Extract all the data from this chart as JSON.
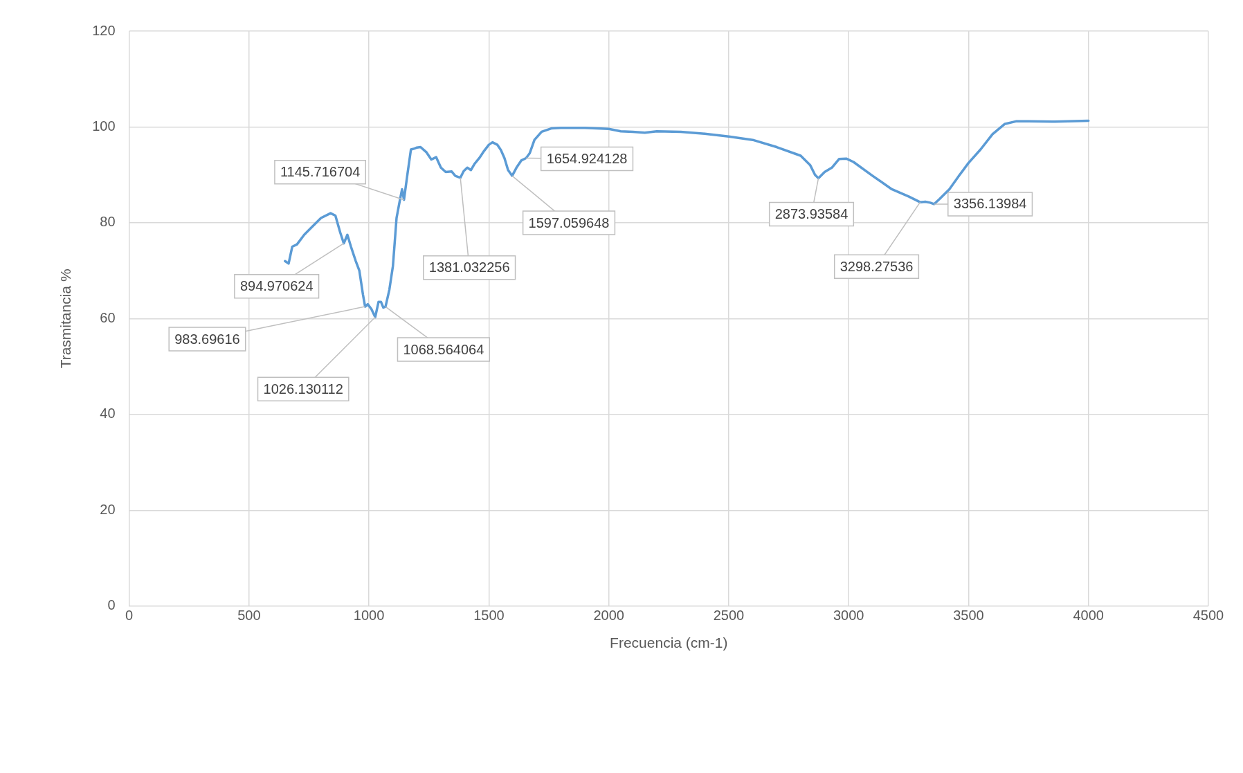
{
  "chart_data": {
    "type": "line",
    "xlabel": "Frecuencia (cm-1)",
    "ylabel": "Trasmitancia %",
    "xlim": [
      0,
      4500
    ],
    "xticks": [
      0,
      500,
      1000,
      1500,
      2000,
      2500,
      3000,
      3500,
      4000,
      4500
    ],
    "ylim": [
      0,
      120
    ],
    "yticks": [
      0,
      20,
      40,
      60,
      80,
      100,
      120
    ],
    "grid": true,
    "legend": false,
    "marker": "none",
    "line_style": "solid",
    "series": [
      {
        "color": "#5b9bd5",
        "x": [
          650,
          665,
          680,
          700,
          730,
          760,
          800,
          840,
          860,
          880,
          895,
          910,
          925,
          945,
          960,
          975,
          984,
          995,
          1010,
          1026,
          1040,
          1050,
          1060,
          1069,
          1085,
          1100,
          1115,
          1130,
          1138,
          1146,
          1160,
          1175,
          1190,
          1200,
          1215,
          1240,
          1260,
          1280,
          1300,
          1320,
          1345,
          1360,
          1381,
          1395,
          1410,
          1425,
          1440,
          1460,
          1480,
          1500,
          1515,
          1535,
          1550,
          1565,
          1580,
          1597,
          1615,
          1635,
          1655,
          1670,
          1690,
          1720,
          1760,
          1800,
          1900,
          2000,
          2050,
          2100,
          2150,
          2200,
          2300,
          2400,
          2500,
          2600,
          2700,
          2800,
          2840,
          2860,
          2874,
          2900,
          2930,
          2960,
          2990,
          3020,
          3100,
          3180,
          3250,
          3298,
          3320,
          3340,
          3356,
          3380,
          3420,
          3460,
          3500,
          3550,
          3600,
          3650,
          3700,
          3750,
          3850,
          4000
        ],
        "values": [
          72,
          71.5,
          75,
          75.5,
          77.5,
          79,
          81,
          82,
          81.5,
          78,
          75.7,
          77.5,
          75,
          72,
          70,
          65,
          62.5,
          63,
          62,
          60.3,
          63.5,
          63.5,
          62.3,
          62.5,
          66,
          71,
          81,
          85,
          87,
          84.8,
          90,
          95.3,
          95.5,
          95.7,
          95.8,
          94.7,
          93.2,
          93.7,
          91.5,
          90.6,
          90.7,
          89.8,
          89.4,
          90.8,
          91.5,
          91,
          92.3,
          93.5,
          95,
          96.3,
          96.8,
          96.3,
          95.2,
          93.5,
          91,
          89.8,
          91.5,
          93,
          93.5,
          94.5,
          97.3,
          99,
          99.7,
          99.8,
          99.8,
          99.6,
          99.1,
          99,
          98.8,
          99.1,
          99,
          98.6,
          98,
          97.3,
          95.8,
          94,
          92,
          90,
          89.3,
          90.6,
          91.5,
          93.3,
          93.4,
          92.7,
          89.8,
          87,
          85.5,
          84.3,
          84.4,
          84.2,
          83.9,
          85,
          87,
          89.8,
          92.5,
          95.3,
          98.5,
          100.6,
          101.2,
          101.2,
          101.1,
          101.3
        ]
      }
    ],
    "annotations": [
      {
        "text": "894.970624",
        "x": 894.970624,
        "y": 75.7
      },
      {
        "text": "983.69616",
        "x": 983.69616,
        "y": 62.5
      },
      {
        "text": "1026.130112",
        "x": 1026.130112,
        "y": 60.3
      },
      {
        "text": "1068.564064",
        "x": 1068.564064,
        "y": 62.5
      },
      {
        "text": "1145.716704",
        "x": 1145.716704,
        "y": 84.8
      },
      {
        "text": "1381.032256",
        "x": 1381.032256,
        "y": 89.4
      },
      {
        "text": "1597.059648",
        "x": 1597.059648,
        "y": 89.8
      },
      {
        "text": "1654.924128",
        "x": 1654.924128,
        "y": 93.5
      },
      {
        "text": "2873.93584",
        "x": 2873.93584,
        "y": 89.3
      },
      {
        "text": "3298.27536",
        "x": 3298.27536,
        "y": 84.3
      },
      {
        "text": "3356.13984",
        "x": 3356.13984,
        "y": 83.9
      }
    ]
  }
}
